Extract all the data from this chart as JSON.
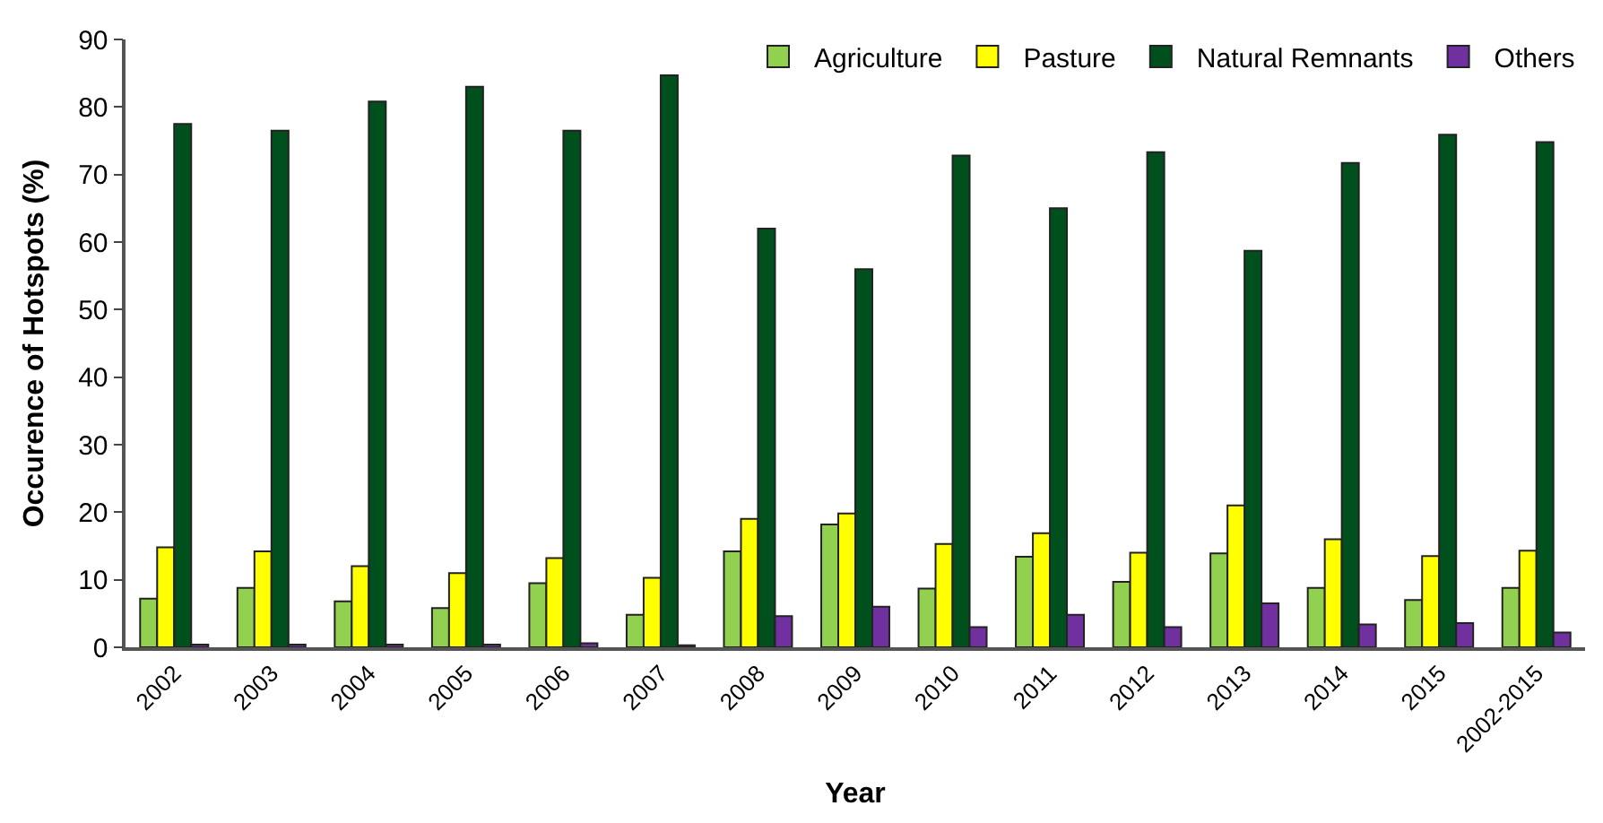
{
  "chart_data": {
    "type": "bar",
    "xlabel": "Year",
    "ylabel": "Occurence of Hotspots (%)",
    "categories": [
      "2002",
      "2003",
      "2004",
      "2005",
      "2006",
      "2007",
      "2008",
      "2009",
      "2010",
      "2011",
      "2012",
      "2013",
      "2014",
      "2015",
      "2002-2015"
    ],
    "series": [
      {
        "name": "Agriculture",
        "color": "#92d050",
        "values": [
          7.2,
          8.8,
          6.8,
          5.8,
          9.5,
          4.8,
          14.2,
          18.2,
          8.7,
          13.4,
          9.7,
          13.9,
          8.8,
          7.0,
          8.8
        ]
      },
      {
        "name": "Pasture",
        "color": "#ffff00",
        "values": [
          14.8,
          14.2,
          12.0,
          11.0,
          13.2,
          10.3,
          19.0,
          19.8,
          15.3,
          16.9,
          14.0,
          21.0,
          16.0,
          13.5,
          14.3
        ]
      },
      {
        "name": "Natural Remnants",
        "color": "#00501e",
        "values": [
          77.5,
          76.5,
          80.8,
          83.0,
          76.5,
          84.7,
          62.0,
          56.0,
          72.8,
          65.0,
          73.3,
          58.7,
          71.7,
          75.9,
          74.8
        ]
      },
      {
        "name": "Others",
        "color": "#7030a0",
        "values": [
          0.4,
          0.4,
          0.4,
          0.4,
          0.6,
          0.3,
          4.6,
          6.0,
          3.0,
          4.8,
          3.0,
          6.5,
          3.4,
          3.6,
          2.2
        ]
      }
    ],
    "ylim": [
      0,
      90
    ],
    "yticks": [
      0,
      10,
      20,
      30,
      40,
      50,
      60,
      70,
      80,
      90
    ],
    "legend": "top right"
  }
}
